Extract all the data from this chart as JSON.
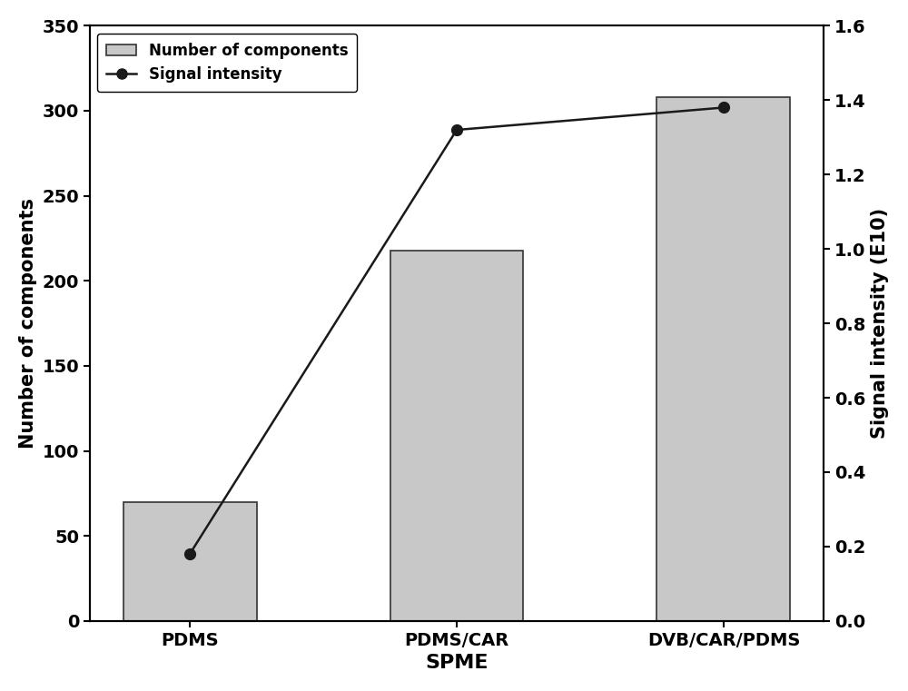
{
  "categories": [
    "PDMS",
    "PDMS/CAR",
    "DVB/CAR/PDMS"
  ],
  "bar_values": [
    70,
    218,
    308
  ],
  "bar_color": "#c8c8c8",
  "bar_edgecolor": "#333333",
  "signal_intensity": [
    0.18,
    1.32,
    1.38
  ],
  "xlabel": "SPME",
  "ylabel_left": "Number of components",
  "ylabel_right": "Signal intensity (E10)",
  "ylim_left": [
    0,
    350
  ],
  "ylim_right": [
    0.0,
    1.6
  ],
  "yticks_left": [
    0,
    50,
    100,
    150,
    200,
    250,
    300,
    350
  ],
  "yticks_right": [
    0.0,
    0.2,
    0.4,
    0.6,
    0.8,
    1.0,
    1.2,
    1.4,
    1.6
  ],
  "legend_bar_label": "Number of components",
  "legend_line_label": "Signal intensity",
  "line_color": "#1a1a1a",
  "marker": "o",
  "marker_size": 8,
  "marker_facecolor": "#1a1a1a",
  "title": "",
  "figwidth": 10.0,
  "figheight": 7.61,
  "dpi": 100,
  "spine_linewidth": 1.5,
  "xlabel_fontsize": 16,
  "ylabel_fontsize": 15,
  "tick_fontsize": 14,
  "legend_fontsize": 12,
  "bar_width": 0.5
}
